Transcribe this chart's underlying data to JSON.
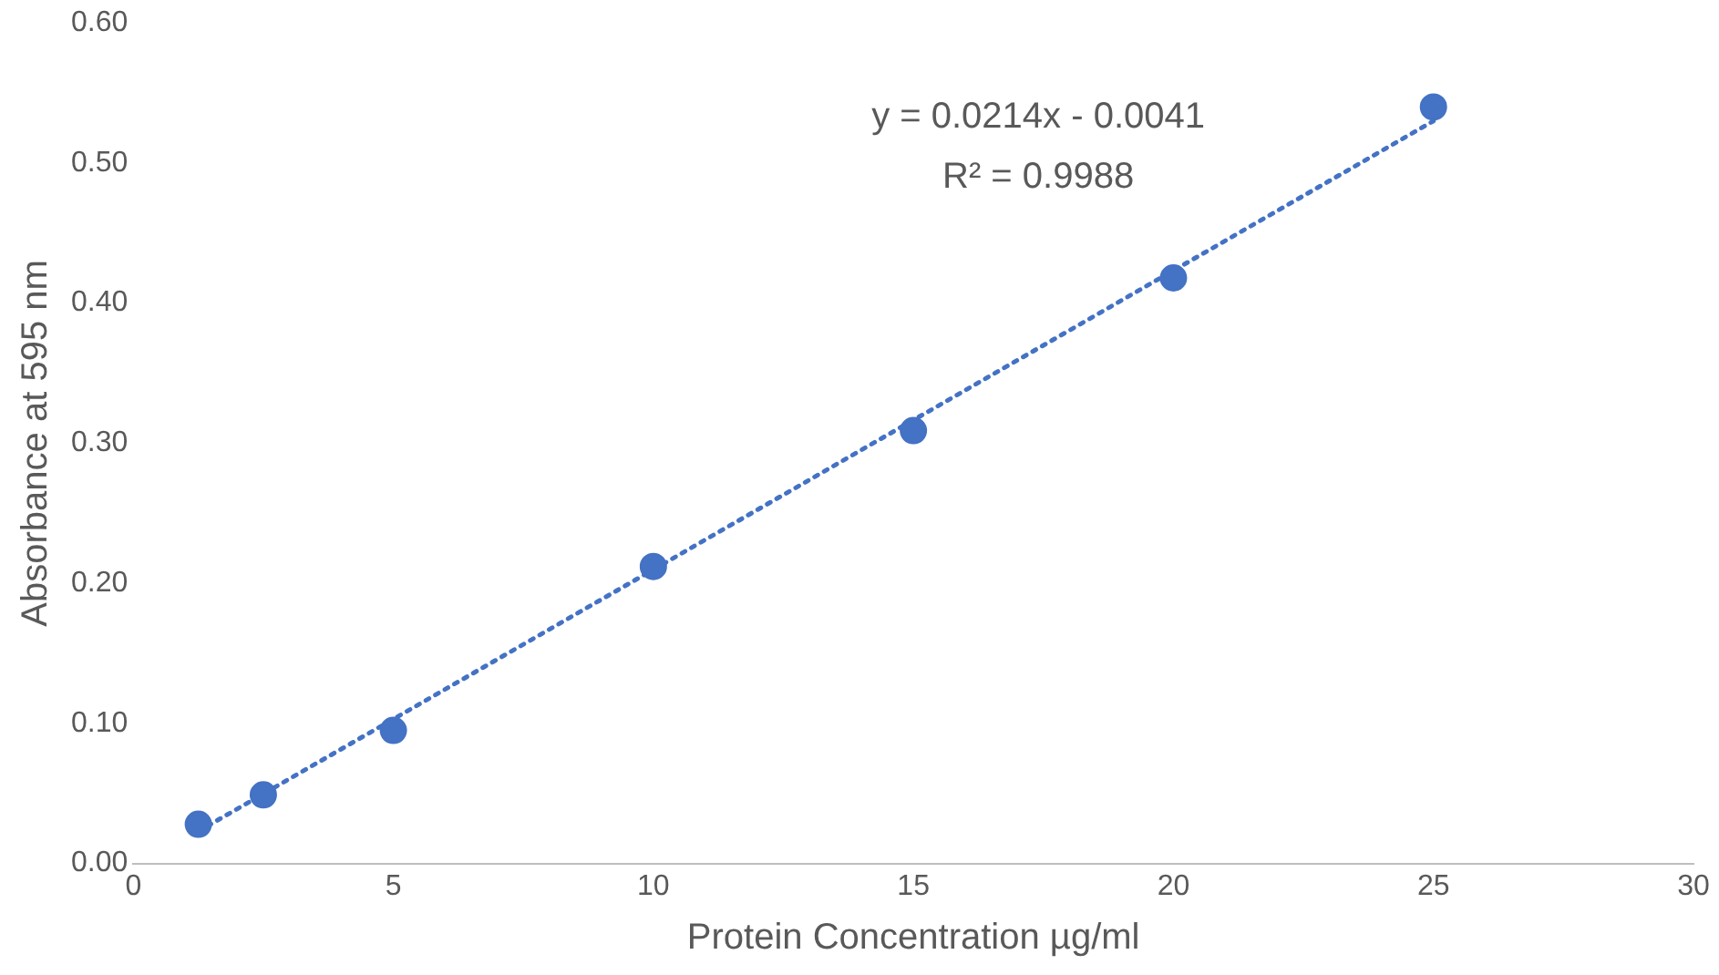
{
  "chart_data": {
    "type": "scatter",
    "xlabel": "Protein Concentration µg/ml",
    "ylabel": "Absorbance at 595 nm",
    "series": [
      {
        "type": "scatter",
        "color": "#4472c4",
        "marker": "circle",
        "x": [
          1.25,
          2.5,
          5,
          10,
          15,
          20,
          25
        ],
        "values": [
          0.028,
          0.049,
          0.095,
          0.212,
          0.309,
          0.418,
          0.54
        ]
      },
      {
        "type": "line",
        "color": "#4472c4",
        "line_style": "dotted",
        "marker": "none",
        "x": [
          1.25,
          25
        ],
        "values": [
          0.023,
          0.53
        ]
      }
    ],
    "xlim": [
      0,
      30
    ],
    "xticks": [
      0,
      5,
      10,
      15,
      20,
      25,
      30
    ],
    "ylim": [
      0,
      0.6
    ],
    "yticks": [
      {
        "value": 0,
        "label": "0.00"
      },
      {
        "value": 0.1,
        "label": "0.10"
      },
      {
        "value": 0.2,
        "label": "0.20"
      },
      {
        "value": 0.3,
        "label": "0.30"
      },
      {
        "value": 0.4,
        "label": "0.40"
      },
      {
        "value": 0.5,
        "label": "0.50"
      },
      {
        "value": 0.6,
        "label": "0.60"
      }
    ],
    "grid": false,
    "legend": false,
    "annotations": [
      "y = 0.0214x - 0.0041",
      "R² = 0.9988"
    ]
  }
}
